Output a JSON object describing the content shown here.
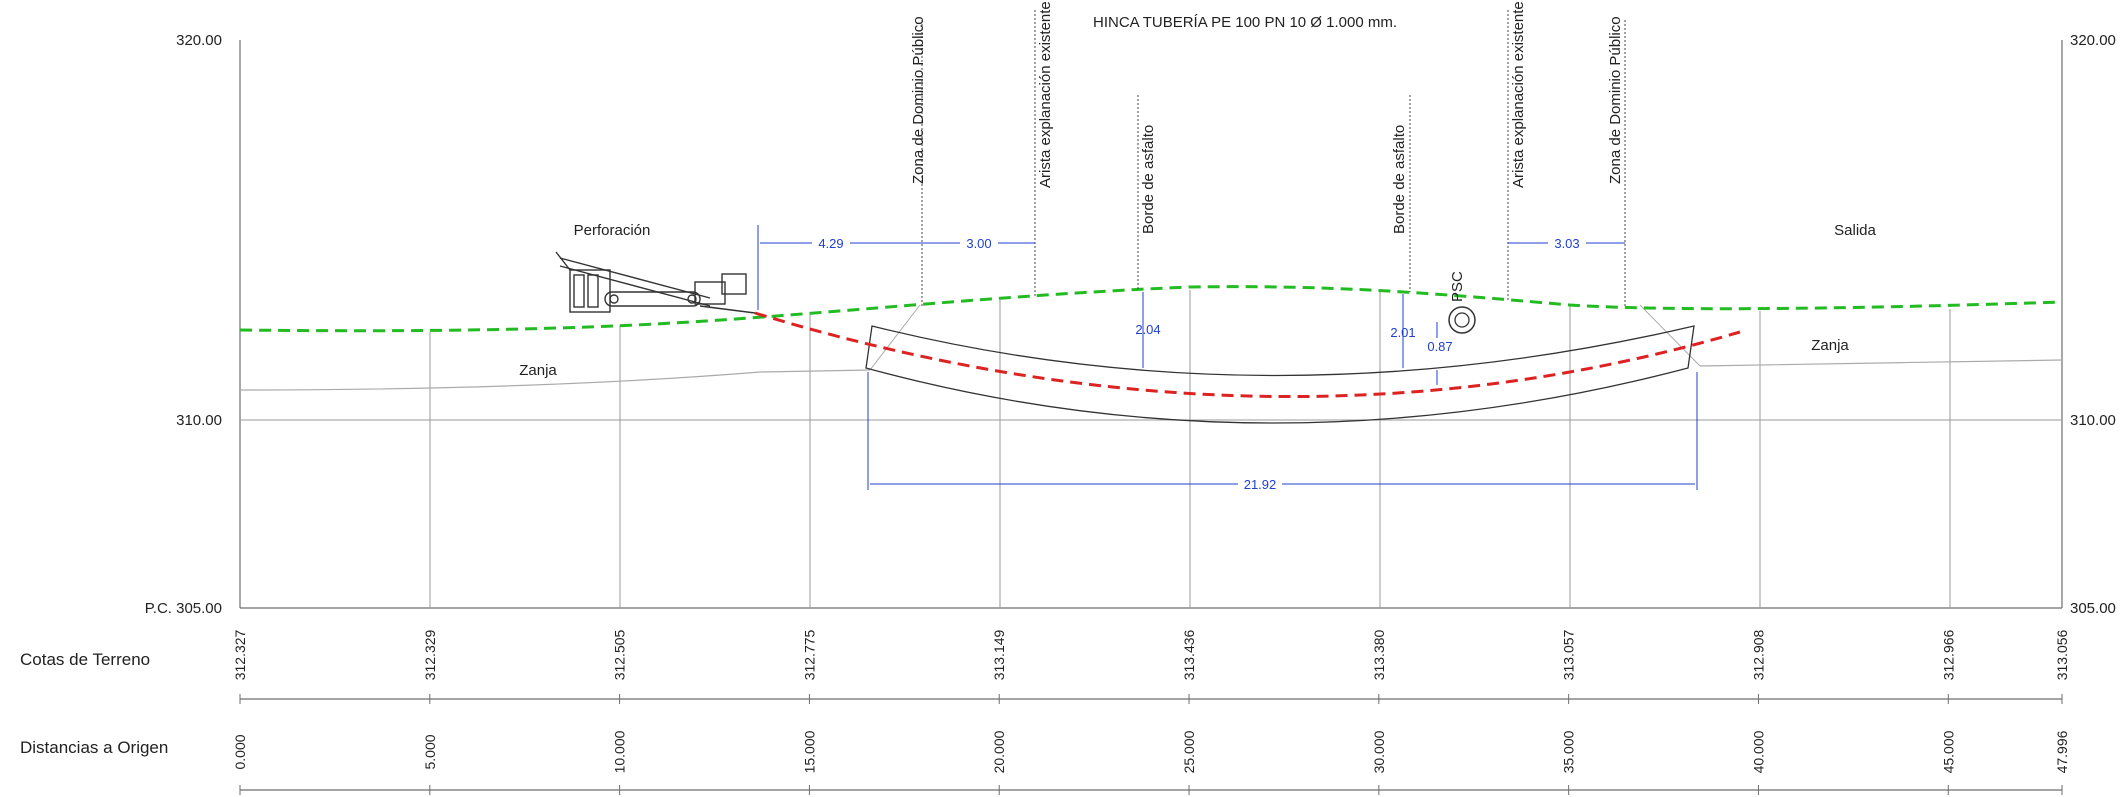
{
  "title": "HINCA TUBERÍA PE 100 PN 10  Ø 1.000 mm.",
  "axis": {
    "left_ticks": [
      "320.00",
      "310.00",
      "P.C. 305.00"
    ],
    "right_ticks": [
      "320.00",
      "310.00",
      "305.00"
    ]
  },
  "labels": {
    "perforacion": "Perforación",
    "salida": "Salida",
    "zanja_left": "Zanja",
    "zanja_right": "Zanja",
    "psc": "PSC"
  },
  "markers": [
    {
      "text": "Zona de Dominio Público"
    },
    {
      "text": "Arista explanación existente"
    },
    {
      "text": "Borde de asfalto"
    },
    {
      "text": "Borde de asfalto"
    },
    {
      "text": "Arista explanación existente"
    },
    {
      "text": "Zona de Dominio Público"
    }
  ],
  "dimensions": {
    "d1": "4.29",
    "d2": "3.00",
    "d3": "3.03",
    "cover_left": "2.04",
    "cover_right": "2.01",
    "psc_clear": "0.87",
    "length": "21.92"
  },
  "table": {
    "cotas_label": "Cotas de Terreno",
    "distancias_label": "Distancias a Origen",
    "stations": [
      {
        "cota": "312.327",
        "dist": "0.000"
      },
      {
        "cota": "312.329",
        "dist": "5.000"
      },
      {
        "cota": "312.505",
        "dist": "10.000"
      },
      {
        "cota": "312.775",
        "dist": "15.000"
      },
      {
        "cota": "313.149",
        "dist": "20.000"
      },
      {
        "cota": "313.436",
        "dist": "25.000"
      },
      {
        "cota": "313.380",
        "dist": "30.000"
      },
      {
        "cota": "313.057",
        "dist": "35.000"
      },
      {
        "cota": "312.908",
        "dist": "40.000"
      },
      {
        "cota": "312.966",
        "dist": "45.000"
      },
      {
        "cota": "313.056",
        "dist": "47.996"
      }
    ]
  },
  "colors": {
    "terrain": "#22bb22",
    "bore": "#dd2222",
    "dimension": "#1f3fd1"
  }
}
